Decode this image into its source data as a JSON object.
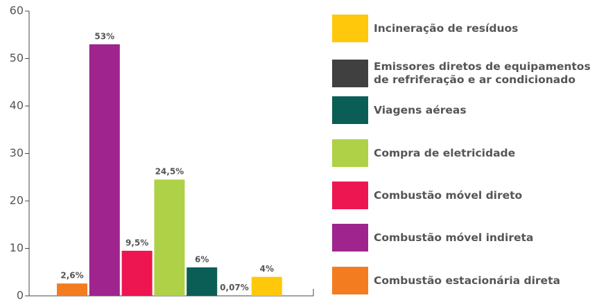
{
  "chart_data": {
    "type": "bar",
    "categories": [
      "Combustão estacionária direta",
      "Combustão móvel indireta",
      "Combustão móvel direto",
      "Compra de eletricidade",
      "Viagens aéreas",
      "Emissores diretos de equipamentos de refriferação e ar condicionado",
      "Incineração de resíduos"
    ],
    "values": [
      2.6,
      53,
      9.5,
      24.5,
      6,
      0.07,
      4
    ],
    "value_labels": [
      "2,6%",
      "53%",
      "9,5%",
      "24,5%",
      "6%",
      "0,07%",
      "4%"
    ],
    "colors": [
      "#f47c20",
      "#a0248e",
      "#ed1651",
      "#afd147",
      "#0b5e55",
      "#404040",
      "#ffc80a"
    ],
    "ylim": [
      0,
      60
    ],
    "yticks": [
      0,
      10,
      20,
      30,
      40,
      50,
      60
    ],
    "legend": "right",
    "legend_order": "reversed"
  }
}
